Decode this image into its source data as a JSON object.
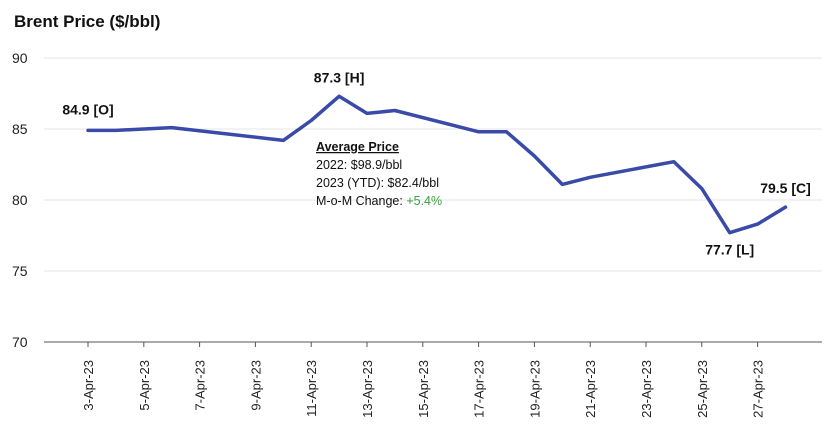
{
  "chart_data": {
    "type": "line",
    "title": "Brent Price ($/bbl)",
    "xlabel": "",
    "ylabel": "",
    "ylim": [
      70,
      90
    ],
    "yticks": [
      70,
      75,
      80,
      85,
      90
    ],
    "grid": true,
    "xtick_labels": [
      "3-Apr-23",
      "5-Apr-23",
      "7-Apr-23",
      "9-Apr-23",
      "11-Apr-23",
      "13-Apr-23",
      "15-Apr-23",
      "17-Apr-23",
      "19-Apr-23",
      "21-Apr-23",
      "23-Apr-23",
      "25-Apr-23",
      "27-Apr-23"
    ],
    "series": [
      {
        "name": "",
        "color": "#3a4aa8",
        "points": [
          {
            "x": "3-Apr-23",
            "y": 84.9
          },
          {
            "x": "4-Apr-23",
            "y": 84.9
          },
          {
            "x": "5-Apr-23",
            "y": 85.0
          },
          {
            "x": "6-Apr-23",
            "y": 85.1
          },
          {
            "x": "10-Apr-23",
            "y": 84.2
          },
          {
            "x": "11-Apr-23",
            "y": 85.6
          },
          {
            "x": "12-Apr-23",
            "y": 87.3
          },
          {
            "x": "13-Apr-23",
            "y": 86.1
          },
          {
            "x": "14-Apr-23",
            "y": 86.3
          },
          {
            "x": "17-Apr-23",
            "y": 84.8
          },
          {
            "x": "18-Apr-23",
            "y": 84.8
          },
          {
            "x": "19-Apr-23",
            "y": 83.1
          },
          {
            "x": "20-Apr-23",
            "y": 81.1
          },
          {
            "x": "21-Apr-23",
            "y": 81.6
          },
          {
            "x": "24-Apr-23",
            "y": 82.7
          },
          {
            "x": "25-Apr-23",
            "y": 80.8
          },
          {
            "x": "26-Apr-23",
            "y": 77.7
          },
          {
            "x": "27-Apr-23",
            "y": 78.3
          },
          {
            "x": "28-Apr-23",
            "y": 79.5
          }
        ]
      }
    ],
    "annotations": [
      {
        "text": "84.9 [O]",
        "x": "3-Apr-23",
        "y": 84.9
      },
      {
        "text": "87.3 [H]",
        "x": "12-Apr-23",
        "y": 87.3
      },
      {
        "text": "77.7 [L]",
        "x": "26-Apr-23",
        "y": 77.7
      },
      {
        "text": "79.5 [C]",
        "x": "28-Apr-23",
        "y": 79.5
      }
    ],
    "note": {
      "title": "Average Price",
      "line1": "2022: $98.9/bbl",
      "line2": "2023 (YTD): $82.4/bbl",
      "line3_label": "M-o-M Change: ",
      "line3_value": "+5.4%",
      "line3_color": "#3aa040"
    }
  }
}
